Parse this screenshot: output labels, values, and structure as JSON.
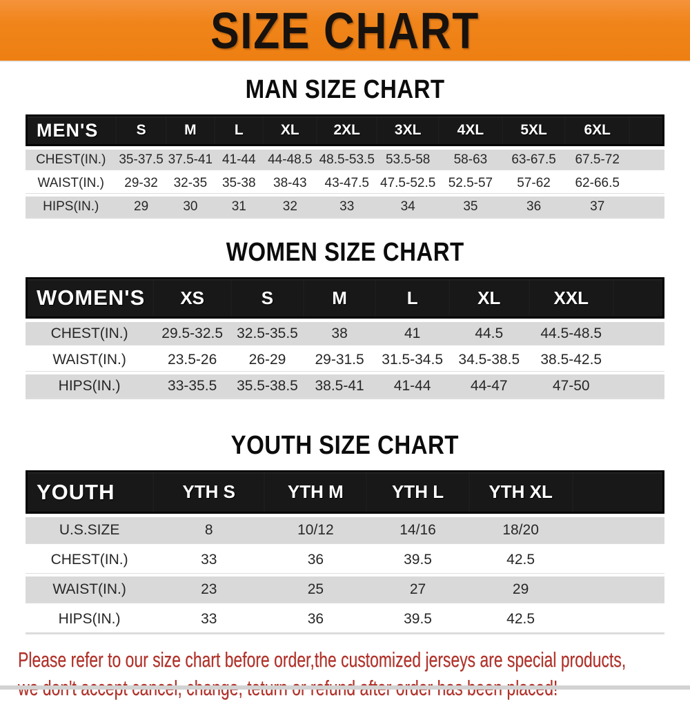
{
  "banner": {
    "title": "SIZE CHART",
    "bg_color": "#f0851b",
    "text_color": "#17120d"
  },
  "sections": {
    "men": {
      "title": "MAN SIZE CHART",
      "header": [
        "MEN'S",
        "S",
        "M",
        "L",
        "XL",
        "2XL",
        "3XL",
        "4XL",
        "5XL",
        "6XL"
      ],
      "rows": [
        {
          "label": "CHEST(IN.)",
          "values": [
            "35-37.5",
            "37.5-41",
            "41-44",
            "44-48.5",
            "48.5-53.5",
            "53.5-58",
            "58-63",
            "63-67.5",
            "67.5-72"
          ]
        },
        {
          "label": "WAIST(IN.)",
          "values": [
            "29-32",
            "32-35",
            "35-38",
            "38-43",
            "43-47.5",
            "47.5-52.5",
            "52.5-57",
            "57-62",
            "62-66.5"
          ]
        },
        {
          "label": "HIPS(IN.)",
          "values": [
            "29",
            "30",
            "31",
            "32",
            "33",
            "34",
            "35",
            "36",
            "37"
          ]
        }
      ]
    },
    "women": {
      "title": "WOMEN SIZE CHART",
      "header": [
        "WOMEN'S",
        "XS",
        "S",
        "M",
        "L",
        "XL",
        "XXL"
      ],
      "rows": [
        {
          "label": "CHEST(IN.)",
          "values": [
            "29.5-32.5",
            "32.5-35.5",
            "38",
            "41",
            "44.5",
            "44.5-48.5"
          ]
        },
        {
          "label": "WAIST(IN.)",
          "values": [
            "23.5-26",
            "26-29",
            "29-31.5",
            "31.5-34.5",
            "34.5-38.5",
            "38.5-42.5"
          ]
        },
        {
          "label": "HIPS(IN.)",
          "values": [
            "33-35.5",
            "35.5-38.5",
            "38.5-41",
            "41-44",
            "44-47",
            "47-50"
          ]
        }
      ]
    },
    "youth": {
      "title": "YOUTH SIZE CHART",
      "header": [
        "YOUTH",
        "YTH S",
        "YTH M",
        "YTH L",
        "YTH XL"
      ],
      "rows": [
        {
          "label": "U.S.SIZE",
          "values": [
            "8",
            "10/12",
            "14/16",
            "18/20"
          ]
        },
        {
          "label": "CHEST(IN.)",
          "values": [
            "33",
            "36",
            "39.5",
            "42.5"
          ]
        },
        {
          "label": "WAIST(IN.)",
          "values": [
            "23",
            "25",
            "27",
            "29"
          ]
        },
        {
          "label": "HIPS(IN.)",
          "values": [
            "33",
            "36",
            "39.5",
            "42.5"
          ]
        }
      ]
    }
  },
  "notice": {
    "line1": "Please refer to our size chart before order,the customized jerseys are special products,",
    "line2": "we don't accept cancel, change, teturn or refund after order has been placed!",
    "color": "#b23028"
  },
  "colors": {
    "table_header_bg": "#181818",
    "table_header_text": "#ffffff",
    "row_stripe_gray": "#d9d9d9",
    "row_stripe_white": "#ffffff"
  }
}
